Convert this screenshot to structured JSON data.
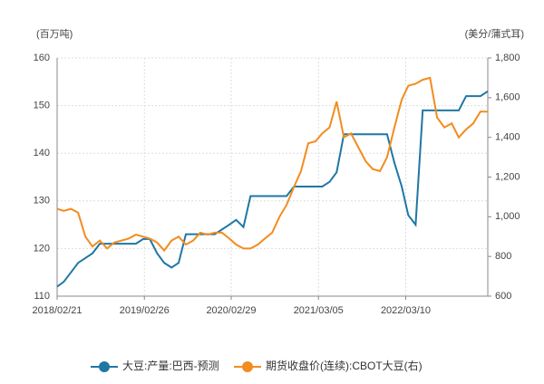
{
  "chart_data": {
    "type": "line",
    "y_label": "(百万吨)",
    "y2_label": "(美分/蒲式耳)",
    "x": [
      "2018/02/21",
      "2018/03/21",
      "2018/04/21",
      "2018/05/21",
      "2018/06/21",
      "2018/07/21",
      "2018/08/21",
      "2018/09/21",
      "2018/10/21",
      "2018/11/21",
      "2018/12/21",
      "2019/01/21",
      "2019/02/21",
      "2019/03/21",
      "2019/04/21",
      "2019/05/21",
      "2019/06/21",
      "2019/07/21",
      "2019/08/21",
      "2019/09/21",
      "2019/10/21",
      "2019/11/21",
      "2019/12/21",
      "2020/01/21",
      "2020/02/21",
      "2020/03/21",
      "2020/04/21",
      "2020/05/21",
      "2020/06/21",
      "2020/07/21",
      "2020/08/21",
      "2020/09/21",
      "2020/10/21",
      "2020/11/21",
      "2020/12/21",
      "2021/01/21",
      "2021/02/21",
      "2021/03/21",
      "2021/04/21",
      "2021/05/21",
      "2021/06/21",
      "2021/07/21",
      "2021/08/21",
      "2021/09/21",
      "2021/10/21",
      "2021/11/21",
      "2021/12/21",
      "2022/01/21",
      "2022/02/21",
      "2022/03/21",
      "2022/04/21",
      "2022/05/21",
      "2022/06/21",
      "2022/07/21",
      "2022/08/21",
      "2022/09/21",
      "2022/10/21",
      "2022/11/21",
      "2022/12/21",
      "2023/01/21",
      "2023/02/21"
    ],
    "xlim": [
      "2018/02/21",
      "2023/02/21"
    ],
    "xticks": [
      "2018/02/21",
      "2019/02/26",
      "2020/02/29",
      "2021/03/05",
      "2022/03/10"
    ],
    "ylim": [
      110,
      160
    ],
    "yticks": [
      110,
      120,
      130,
      140,
      150,
      160
    ],
    "y2lim": [
      600,
      1800
    ],
    "y2ticks": [
      600,
      800,
      {
        "value": 1000,
        "label": "1,000"
      },
      {
        "value": 1200,
        "label": "1,200"
      },
      {
        "value": 1400,
        "label": "1,400"
      },
      {
        "value": 1600,
        "label": "1,600"
      },
      {
        "value": 1800,
        "label": "1,800"
      }
    ],
    "grid": true,
    "series": [
      {
        "name": "大豆:产量:巴西-预测",
        "color": "#1f77a4",
        "values": [
          112,
          113,
          115,
          117,
          118,
          119,
          121,
          121,
          121,
          121,
          121,
          121,
          122,
          122,
          119,
          117,
          116,
          117,
          123,
          123,
          123,
          123,
          123,
          124,
          125,
          126,
          124.5,
          131,
          131,
          131,
          131,
          131,
          131,
          133,
          133,
          133,
          133,
          133,
          134,
          136,
          144,
          144,
          144,
          144,
          144,
          144,
          144,
          138,
          133,
          127,
          125,
          149,
          149,
          149,
          149,
          149,
          149,
          152,
          152,
          152,
          153
        ]
      },
      {
        "name": "期货收盘价(连续):CBOT大豆(右)",
        "color": "#f28c1e",
        "axis": "y2",
        "values": [
          1040,
          1030,
          1040,
          1020,
          900,
          850,
          880,
          840,
          870,
          880,
          890,
          910,
          900,
          890,
          870,
          830,
          880,
          900,
          860,
          880,
          920,
          910,
          920,
          920,
          890,
          860,
          840,
          840,
          860,
          890,
          920,
          1000,
          1060,
          1150,
          1230,
          1370,
          1380,
          1420,
          1450,
          1580,
          1400,
          1420,
          1350,
          1280,
          1240,
          1230,
          1300,
          1450,
          1590,
          1660,
          1670,
          1690,
          1700,
          1500,
          1450,
          1470,
          1400,
          1440,
          1470,
          1530,
          1530
        ]
      }
    ]
  }
}
